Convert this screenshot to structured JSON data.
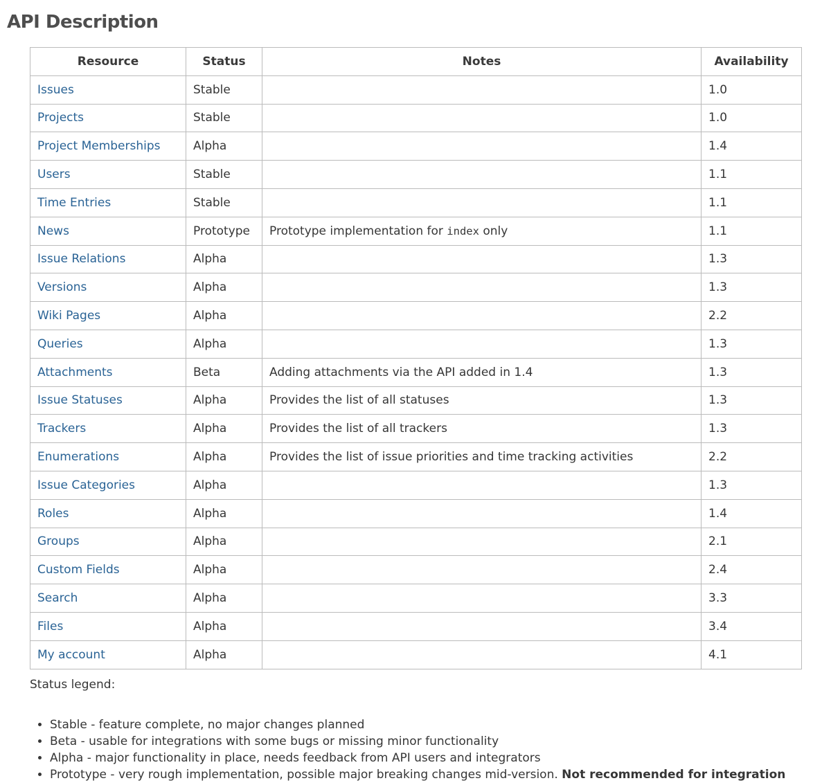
{
  "page": {
    "title": "API Description"
  },
  "colors": {
    "link_blue": "#2a6395",
    "table_border": "#bbbbbb",
    "heading_gray": "#4e4e4e",
    "body_text": "#363636"
  },
  "table": {
    "headers": [
      "Resource",
      "Status",
      "Notes",
      "Availability"
    ],
    "rows": [
      {
        "resource": "Issues",
        "status": "Stable",
        "note": "",
        "availability": "1.0"
      },
      {
        "resource": "Projects",
        "status": "Stable",
        "note": "",
        "availability": "1.0"
      },
      {
        "resource": "Project Memberships",
        "status": "Alpha",
        "note": "",
        "availability": "1.4"
      },
      {
        "resource": "Users",
        "status": "Stable",
        "note": "",
        "availability": "1.1"
      },
      {
        "resource": "Time Entries",
        "status": "Stable",
        "note": "",
        "availability": "1.1"
      },
      {
        "resource": "News",
        "status": "Prototype",
        "note": "",
        "note_parts": {
          "pre": "Prototype implementation for ",
          "code": "index",
          "post": " only"
        },
        "availability": "1.1"
      },
      {
        "resource": "Issue Relations",
        "status": "Alpha",
        "note": "",
        "availability": "1.3"
      },
      {
        "resource": "Versions",
        "status": "Alpha",
        "note": "",
        "availability": "1.3"
      },
      {
        "resource": "Wiki Pages",
        "status": "Alpha",
        "note": "",
        "availability": "2.2"
      },
      {
        "resource": "Queries",
        "status": "Alpha",
        "note": "",
        "availability": "1.3"
      },
      {
        "resource": "Attachments",
        "status": "Beta",
        "note": "Adding attachments via the API added in 1.4",
        "availability": "1.3"
      },
      {
        "resource": "Issue Statuses",
        "status": "Alpha",
        "note": "Provides the list of all statuses",
        "availability": "1.3"
      },
      {
        "resource": "Trackers",
        "status": "Alpha",
        "note": "Provides the list of all trackers",
        "availability": "1.3"
      },
      {
        "resource": "Enumerations",
        "status": "Alpha",
        "note": "Provides the list of issue priorities and time tracking activities",
        "availability": "2.2"
      },
      {
        "resource": "Issue Categories",
        "status": "Alpha",
        "note": "",
        "availability": "1.3"
      },
      {
        "resource": "Roles",
        "status": "Alpha",
        "note": "",
        "availability": "1.4"
      },
      {
        "resource": "Groups",
        "status": "Alpha",
        "note": "",
        "availability": "2.1"
      },
      {
        "resource": "Custom Fields",
        "status": "Alpha",
        "note": "",
        "availability": "2.4"
      },
      {
        "resource": "Search",
        "status": "Alpha",
        "note": "",
        "availability": "3.3"
      },
      {
        "resource": "Files",
        "status": "Alpha",
        "note": "",
        "availability": "3.4"
      },
      {
        "resource": "My account",
        "status": "Alpha",
        "note": "",
        "availability": "4.1"
      }
    ]
  },
  "legend": {
    "title": "Status legend:",
    "items": [
      {
        "text": "Stable - feature complete, no major changes planned"
      },
      {
        "text": "Beta - usable for integrations with some bugs or missing minor functionality"
      },
      {
        "text": "Alpha - major functionality in place, needs feedback from API users and integrators"
      },
      {
        "text": "Prototype - very rough implementation, possible major breaking changes mid-version. ",
        "bold": "Not recommended for integration"
      }
    ]
  }
}
